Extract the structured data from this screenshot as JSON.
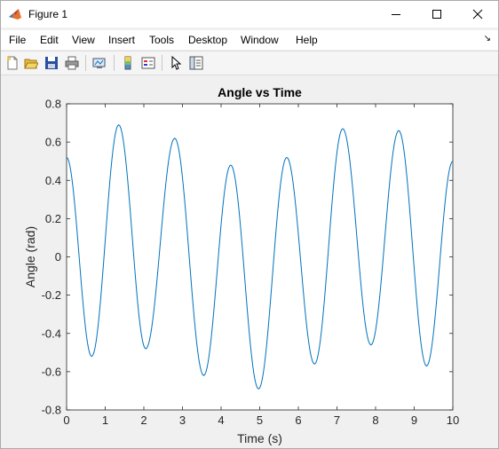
{
  "window": {
    "title": "Figure 1",
    "minimize_icon": "minimize-icon",
    "maximize_icon": "maximize-icon",
    "close_icon": "close-icon"
  },
  "menu": {
    "items": [
      "File",
      "Edit",
      "View",
      "Insert",
      "Tools",
      "Desktop",
      "Window",
      "Help"
    ]
  },
  "toolbar": {
    "icons": [
      "new-figure-icon",
      "open-icon",
      "save-icon",
      "print-icon",
      "link-plot-icon",
      "colorbar-icon",
      "legend-icon",
      "pointer-icon",
      "property-inspector-icon"
    ]
  },
  "chart_data": {
    "type": "line",
    "title": "Angle vs Time",
    "xlabel": "Time (s)",
    "ylabel": "Angle (rad)",
    "xlim": [
      0,
      10
    ],
    "ylim": [
      -0.8,
      0.8
    ],
    "xticks": [
      0,
      1,
      2,
      3,
      4,
      5,
      6,
      7,
      8,
      9,
      10
    ],
    "yticks": [
      -0.8,
      -0.6,
      -0.4,
      -0.2,
      0,
      0.2,
      0.4,
      0.6,
      0.8
    ],
    "ytick_labels": [
      "-0.8",
      "-0.6",
      "-0.4",
      "-0.2",
      "0",
      "0.2",
      "0.4",
      "0.6",
      "0.8"
    ],
    "grid": false,
    "line_color": "#0072BD",
    "series": [
      {
        "x": [
          0,
          0.65,
          1.35,
          2.05,
          2.8,
          3.55,
          4.25,
          4.97,
          5.7,
          6.42,
          7.15,
          7.88,
          8.6,
          9.32,
          10
        ],
        "y": [
          0.52,
          -0.52,
          0.69,
          -0.48,
          0.62,
          -0.62,
          0.48,
          -0.69,
          0.52,
          -0.56,
          0.67,
          -0.46,
          0.66,
          -0.57,
          0.5
        ]
      }
    ]
  }
}
